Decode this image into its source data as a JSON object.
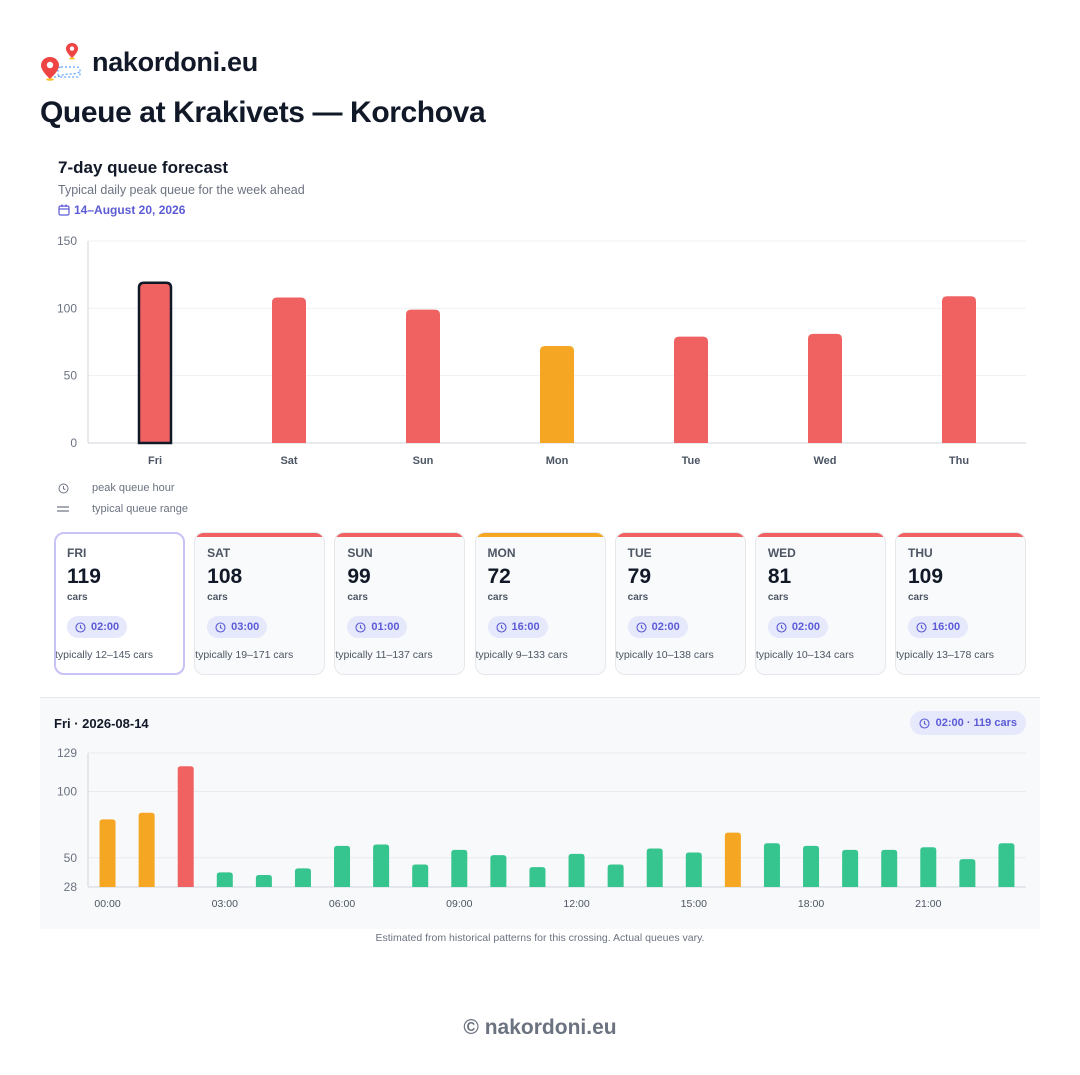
{
  "brand": {
    "name": "nakordoni.eu"
  },
  "page": {
    "title": "Queue at Krakivets — Korchova"
  },
  "forecast": {
    "title": "7-day queue forecast",
    "subtitle": "Typical daily peak queue for the week ahead",
    "date_range": "14–August 20, 2026"
  },
  "colors": {
    "high": "#f06262",
    "medium": "#f5a623",
    "low": "#36c48f",
    "accent": "#5b5bd6"
  },
  "legend": {
    "peak_hour": "peak queue hour",
    "range": "typical queue range"
  },
  "days": [
    {
      "day": "FRI",
      "value": "119",
      "unit": "cars",
      "peak_hour": "02:00",
      "range": "typically 12–145 cars",
      "level": "high",
      "selected": true
    },
    {
      "day": "SAT",
      "value": "108",
      "unit": "cars",
      "peak_hour": "03:00",
      "range": "typically 19–171 cars",
      "level": "high",
      "selected": false
    },
    {
      "day": "SUN",
      "value": "99",
      "unit": "cars",
      "peak_hour": "01:00",
      "range": "typically 11–137 cars",
      "level": "high",
      "selected": false
    },
    {
      "day": "MON",
      "value": "72",
      "unit": "cars",
      "peak_hour": "16:00",
      "range": "typically 9–133 cars",
      "level": "medium",
      "selected": false
    },
    {
      "day": "TUE",
      "value": "79",
      "unit": "cars",
      "peak_hour": "02:00",
      "range": "typically 10–138 cars",
      "level": "high",
      "selected": false
    },
    {
      "day": "WED",
      "value": "81",
      "unit": "cars",
      "peak_hour": "02:00",
      "range": "typically 10–134 cars",
      "level": "high",
      "selected": false
    },
    {
      "day": "THU",
      "value": "109",
      "unit": "cars",
      "peak_hour": "16:00",
      "range": "typically 13–178 cars",
      "level": "high",
      "selected": false
    }
  ],
  "selected_day": {
    "title": "Fri · 2026-08-14",
    "peak_summary": "02:00 · 119 cars"
  },
  "footnote": "Estimated from historical patterns for this crossing. Actual queues vary.",
  "copyright": "© nakordoni.eu",
  "chart_data": [
    {
      "type": "bar",
      "categories": [
        "Fri",
        "Sat",
        "Sun",
        "Mon",
        "Tue",
        "Wed",
        "Thu"
      ],
      "values": [
        119,
        108,
        99,
        72,
        79,
        81,
        109
      ],
      "colors": [
        "high",
        "high",
        "high",
        "medium",
        "high",
        "high",
        "high"
      ],
      "highlighted": "Fri",
      "yticks": [
        0,
        50,
        100,
        150
      ],
      "ylim": [
        0,
        150
      ],
      "grid": true
    },
    {
      "type": "bar",
      "x": [
        "00:00",
        "01:00",
        "02:00",
        "03:00",
        "04:00",
        "05:00",
        "06:00",
        "07:00",
        "08:00",
        "09:00",
        "10:00",
        "11:00",
        "12:00",
        "13:00",
        "14:00",
        "15:00",
        "16:00",
        "17:00",
        "18:00",
        "19:00",
        "20:00",
        "21:00",
        "22:00",
        "23:00"
      ],
      "xticks": [
        "00:00",
        "03:00",
        "06:00",
        "09:00",
        "12:00",
        "15:00",
        "18:00",
        "21:00"
      ],
      "values": [
        79,
        84,
        119,
        39,
        37,
        42,
        59,
        60,
        45,
        56,
        52,
        43,
        53,
        45,
        57,
        54,
        69,
        61,
        59,
        56,
        56,
        58,
        49,
        61
      ],
      "colors": [
        "medium",
        "medium",
        "high",
        "low",
        "low",
        "low",
        "low",
        "low",
        "low",
        "low",
        "low",
        "low",
        "low",
        "low",
        "low",
        "low",
        "medium",
        "low",
        "low",
        "low",
        "low",
        "low",
        "low",
        "low"
      ],
      "yticks": [
        28,
        50,
        100,
        129
      ],
      "ylim": [
        28,
        129
      ],
      "grid": true
    }
  ]
}
